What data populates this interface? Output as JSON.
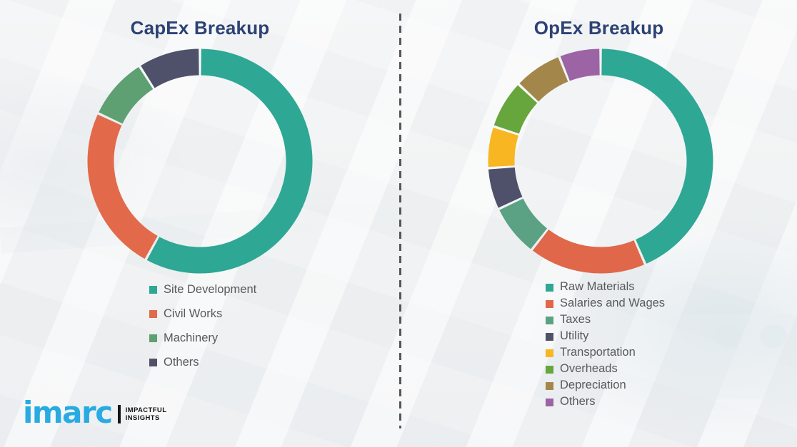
{
  "page": {
    "background_color": "#F1F3F4",
    "divider_style": "vertical dashed line",
    "divider_color": "#55565C",
    "title_color": "#2D4274",
    "legend_text_color": "#595959"
  },
  "chart_data": [
    {
      "type": "pie",
      "subtype": "donut",
      "title": "CapEx Breakup",
      "labels": [
        "Site Development",
        "Civil Works",
        "Machinery",
        "Others"
      ],
      "values_pct_estimated": [
        58,
        24,
        9,
        9
      ],
      "colors": [
        "#2EA795",
        "#E2694A",
        "#5FA073",
        "#4F516B"
      ],
      "start_angle_deg": 0,
      "direction": "clockwise",
      "donut_hole_ratio": 0.77,
      "legend_position": "below-chart-left",
      "data_labels_shown": false
    },
    {
      "type": "pie",
      "subtype": "donut",
      "title": "OpEx Breakup",
      "labels": [
        "Raw Materials",
        "Salaries and Wages",
        "Taxes",
        "Utility",
        "Transportation",
        "Overheads",
        "Depreciation",
        "Others"
      ],
      "values_pct_estimated": [
        43.5,
        17,
        7.5,
        6,
        6,
        7,
        7,
        6
      ],
      "colors": [
        "#2EA795",
        "#E0674A",
        "#5BA184",
        "#4F516B",
        "#F8B622",
        "#67A63C",
        "#A3874A",
        "#9C63A5"
      ],
      "start_angle_deg": 0,
      "direction": "clockwise",
      "donut_hole_ratio": 0.77,
      "legend_position": "below-chart-left",
      "data_labels_shown": false
    }
  ],
  "logo": {
    "brand": "imarc",
    "tagline": [
      "IMPACTFUL",
      "INSIGHTS"
    ],
    "brand_color": "#29ABE2",
    "tagline_color": "#141414"
  }
}
